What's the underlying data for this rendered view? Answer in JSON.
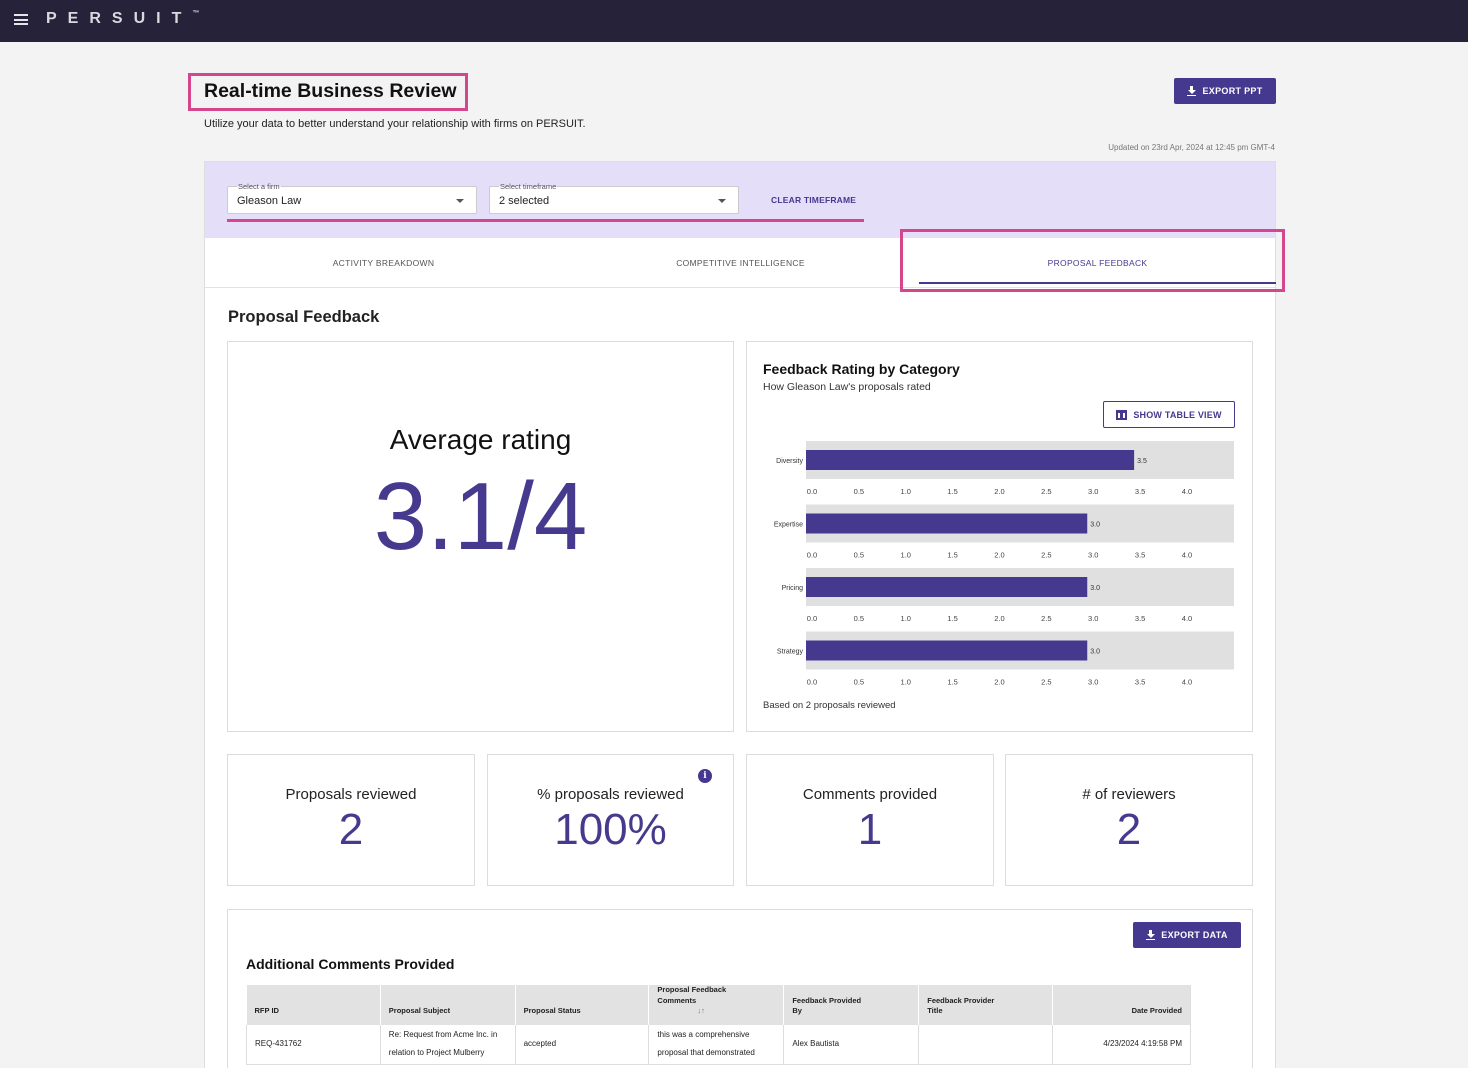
{
  "app": {
    "logo": "PERSUIT",
    "logo_tm": "™"
  },
  "header": {
    "title": "Real-time Business Review",
    "subtitle": "Utilize your data to better understand your relationship with firms on PERSUIT.",
    "export_ppt_label": "EXPORT PPT",
    "updated_text": "Updated on 23rd Apr, 2024 at 12:45 pm GMT-4"
  },
  "filters": {
    "firm_label": "Select a firm",
    "firm_value": "Gleason  Law",
    "timeframe_label": "Select timeframe",
    "timeframe_value": "2 selected",
    "clear_label": "CLEAR TIMEFRAME"
  },
  "tabs": [
    {
      "label": "ACTIVITY BREAKDOWN",
      "active": false
    },
    {
      "label": "COMPETITIVE INTELLIGENCE",
      "active": false
    },
    {
      "label": "PROPOSAL FEEDBACK",
      "active": true
    }
  ],
  "section_title": "Proposal Feedback",
  "average": {
    "label": "Average rating",
    "value": "3.1/4"
  },
  "feedback_chart": {
    "title": "Feedback Rating by Category",
    "subtitle": "How Gleason Law's proposals rated",
    "table_view_label": "SHOW TABLE VIEW",
    "footnote": "Based on 2 proposals reviewed"
  },
  "chart_data": {
    "type": "bar",
    "orientation": "horizontal",
    "categories": [
      "Diversity",
      "Expertise",
      "Pricing",
      "Strategy"
    ],
    "values": [
      3.5,
      3.0,
      3.0,
      3.0
    ],
    "value_labels": [
      "3.5",
      "3.0",
      "3.0",
      "3.0"
    ],
    "xlim": [
      0,
      4
    ],
    "ticks": [
      "0.0",
      "0.5",
      "1.0",
      "1.5",
      "2.0",
      "2.5",
      "3.0",
      "3.5",
      "4.0"
    ],
    "bar_color": "#45398f",
    "track_color": "#e0e0e0"
  },
  "stats": [
    {
      "label": "Proposals reviewed",
      "value": "2",
      "info": false
    },
    {
      "label": "% proposals reviewed",
      "value": "100%",
      "info": true
    },
    {
      "label": "Comments provided",
      "value": "1",
      "info": false
    },
    {
      "label": "# of reviewers",
      "value": "2",
      "info": false
    }
  ],
  "comments": {
    "title": "Additional Comments Provided",
    "export_label": "EXPORT DATA",
    "columns": [
      "RFP ID",
      "Proposal Subject",
      "Proposal Status",
      "Proposal Feedback Comments",
      "Feedback Provided By",
      "Feedback Provider Title",
      "Date Provided"
    ],
    "rows": [
      [
        "REQ-431762",
        "Re: Request from Acme Inc. in relation to Project Mulberry",
        "accepted",
        "this was a comprehensive proposal that demonstrated",
        "Alex Bautista",
        "",
        "4/23/2024 4:19:58 PM"
      ]
    ]
  },
  "colors": {
    "accent": "#45398f",
    "highlight": "#d6468f",
    "filter_band": "#e4def9",
    "topbar": "#25223a"
  }
}
